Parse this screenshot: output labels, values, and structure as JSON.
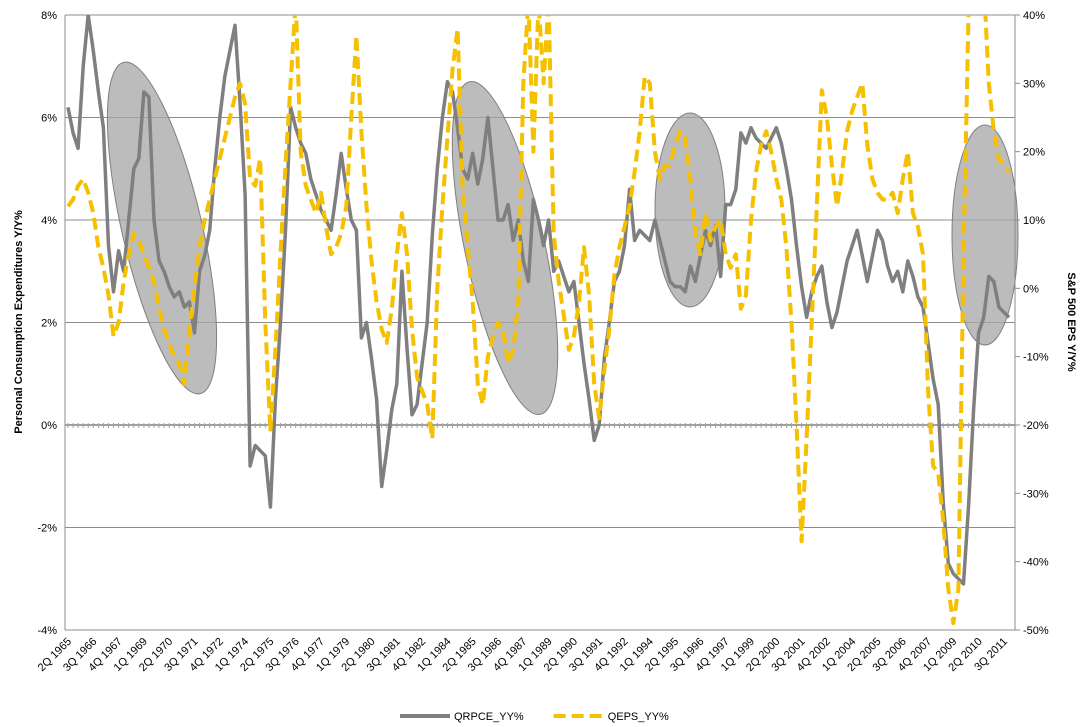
{
  "chart_data": {
    "type": "line",
    "y_label": "Personal Consumption Expenditures Y/Y%",
    "y2_label": "S&P 500 EPS Y/Y%",
    "categories": [
      "2Q 1965",
      null,
      null,
      null,
      null,
      "3Q 1966",
      null,
      null,
      null,
      null,
      "4Q 1967",
      null,
      null,
      null,
      null,
      "1Q 1969",
      null,
      null,
      null,
      null,
      "2Q 1970",
      null,
      null,
      null,
      null,
      "3Q 1971",
      null,
      null,
      null,
      null,
      "4Q 1972",
      null,
      null,
      null,
      null,
      "1Q 1974",
      null,
      null,
      null,
      null,
      "2Q 1975",
      null,
      null,
      null,
      null,
      "3Q 1976",
      null,
      null,
      null,
      null,
      "4Q 1977",
      null,
      null,
      null,
      null,
      "1Q 1979",
      null,
      null,
      null,
      null,
      "2Q 1980",
      null,
      null,
      null,
      null,
      "3Q 1981",
      null,
      null,
      null,
      null,
      "4Q 1982",
      null,
      null,
      null,
      null,
      "1Q 1984",
      null,
      null,
      null,
      null,
      "2Q 1985",
      null,
      null,
      null,
      null,
      "3Q 1986",
      null,
      null,
      null,
      null,
      "4Q 1987",
      null,
      null,
      null,
      null,
      "1Q 1989",
      null,
      null,
      null,
      null,
      "2Q 1990",
      null,
      null,
      null,
      null,
      "3Q 1991",
      null,
      null,
      null,
      null,
      "4Q 1992",
      null,
      null,
      null,
      null,
      "1Q 1994",
      null,
      null,
      null,
      null,
      "2Q 1995",
      null,
      null,
      null,
      null,
      "3Q 1996",
      null,
      null,
      null,
      null,
      "4Q 1997",
      null,
      null,
      null,
      null,
      "1Q 1999",
      null,
      null,
      null,
      null,
      "2Q 2000",
      null,
      null,
      null,
      null,
      "3Q 2001",
      null,
      null,
      null,
      null,
      "4Q 2002",
      null,
      null,
      null,
      null,
      "1Q 2004",
      null,
      null,
      null,
      null,
      "2Q 2005",
      null,
      null,
      null,
      null,
      "3Q 2006",
      null,
      null,
      null,
      null,
      "4Q 2007",
      null,
      null,
      null,
      null,
      "1Q 2009",
      null,
      null,
      null,
      null,
      "2Q 2010",
      null,
      null,
      null,
      null,
      "3Q 2011",
      null
    ],
    "series": [
      {
        "name": "QRPCE_YY%",
        "color": "#7f7f7f",
        "dash": false,
        "axis": "y",
        "values": [
          6.2,
          5.7,
          5.4,
          7.0,
          8.0,
          7.3,
          6.5,
          5.8,
          3.5,
          2.6,
          3.4,
          3.0,
          4.0,
          5.0,
          5.2,
          6.5,
          6.4,
          4.0,
          3.2,
          3.0,
          2.7,
          2.5,
          2.6,
          2.3,
          2.4,
          1.8,
          3.0,
          3.3,
          3.8,
          5.0,
          6.0,
          6.8,
          7.3,
          7.8,
          6.3,
          4.5,
          -0.8,
          -0.4,
          -0.5,
          -0.6,
          -1.6,
          0.5,
          2.0,
          3.8,
          6.2,
          5.8,
          5.5,
          5.3,
          4.8,
          4.5,
          4.2,
          4.0,
          3.8,
          4.5,
          5.3,
          4.6,
          4.0,
          3.8,
          1.7,
          2.0,
          1.3,
          0.5,
          -1.2,
          -0.5,
          0.3,
          0.8,
          3.0,
          1.5,
          0.2,
          0.4,
          1.2,
          2.0,
          3.7,
          5.0,
          6.0,
          6.7,
          6.5,
          5.8,
          5.0,
          4.8,
          5.3,
          4.7,
          5.2,
          6.0,
          5.0,
          4.0,
          4.0,
          4.3,
          3.6,
          4.0,
          3.2,
          2.8,
          4.4,
          4.0,
          3.5,
          4.0,
          3.0,
          3.2,
          2.9,
          2.6,
          2.8,
          2.0,
          1.2,
          0.5,
          -0.3,
          0.0,
          1.3,
          2.0,
          2.8,
          3.0,
          3.5,
          4.6,
          3.6,
          3.8,
          3.7,
          3.6,
          4.0,
          3.6,
          3.2,
          2.8,
          2.7,
          2.7,
          2.6,
          3.1,
          2.8,
          3.3,
          3.8,
          3.5,
          3.9,
          2.9,
          4.3,
          4.3,
          4.6,
          5.7,
          5.5,
          5.8,
          5.6,
          5.5,
          5.4,
          5.6,
          5.8,
          5.5,
          5.0,
          4.4,
          3.5,
          2.7,
          2.1,
          2.6,
          2.9,
          3.1,
          2.4,
          1.9,
          2.2,
          2.7,
          3.2,
          3.5,
          3.8,
          3.3,
          2.8,
          3.3,
          3.8,
          3.6,
          3.1,
          2.8,
          3.0,
          2.6,
          3.2,
          2.9,
          2.5,
          2.3,
          1.6,
          0.9,
          0.4,
          -1.5,
          -2.7,
          -2.9,
          -3.0,
          -3.1,
          -1.6,
          0.3,
          1.8,
          2.1,
          2.9,
          2.8,
          2.3,
          2.2,
          2.1
        ]
      },
      {
        "name": "QEPS_YY%",
        "color": "#f5c000",
        "dash": true,
        "axis": "y2",
        "values": [
          12,
          13,
          15,
          16,
          14,
          11,
          6,
          3,
          -1,
          -7,
          -5,
          1,
          5,
          8,
          7,
          5,
          3,
          1,
          -3,
          -6,
          -8,
          -10,
          -11,
          -14,
          -6,
          0,
          6,
          10,
          13,
          16,
          19,
          22,
          25,
          28,
          30,
          27,
          16,
          15,
          19,
          -5,
          -21,
          -9,
          5,
          18,
          30,
          42,
          20,
          15,
          13,
          11,
          14,
          9,
          5,
          6,
          8,
          12,
          25,
          37,
          23,
          12,
          4,
          -2,
          -6,
          -8,
          -3,
          5,
          11,
          5,
          -6,
          -13,
          -15,
          -17,
          -22,
          0,
          12,
          22,
          32,
          38,
          15,
          6,
          -2,
          -14,
          -17,
          -10,
          -7,
          -5,
          -6,
          -11,
          -9,
          -2,
          30,
          42,
          20,
          42,
          30,
          42,
          8,
          1,
          -4,
          -9,
          -7,
          -2,
          6,
          -1,
          -14,
          -19,
          -12,
          -6,
          2,
          6,
          9,
          12,
          17,
          23,
          31,
          30,
          20,
          16,
          18,
          18,
          21,
          23,
          22,
          16,
          8,
          5,
          11,
          7,
          9,
          10,
          5,
          3,
          5,
          -3,
          -1,
          10,
          17,
          21,
          23,
          20,
          16,
          13,
          6,
          -5,
          -20,
          -37,
          -22,
          -5,
          12,
          29,
          25,
          18,
          12,
          17,
          23,
          26,
          28,
          30,
          21,
          16,
          14,
          13,
          13,
          14,
          11,
          16,
          20,
          11,
          9,
          5,
          -15,
          -26,
          -27,
          -34,
          -44,
          -49,
          -44,
          5,
          40,
          45,
          42,
          45,
          30,
          23,
          19,
          18,
          17
        ]
      }
    ],
    "ylim": [
      -4,
      8
    ],
    "yticks": [
      {
        "value": -4,
        "label": "-4%"
      },
      {
        "value": -2,
        "label": "-2%"
      },
      {
        "value": 0,
        "label": "0%"
      },
      {
        "value": 2,
        "label": "2%"
      },
      {
        "value": 4,
        "label": "4%"
      },
      {
        "value": 6,
        "label": "6%"
      },
      {
        "value": 8,
        "label": "8%"
      }
    ],
    "y2lim": [
      -50,
      40
    ],
    "y2ticks": [
      {
        "value": -50,
        "label": "-50%"
      },
      {
        "value": -40,
        "label": "-40%"
      },
      {
        "value": -30,
        "label": "-30%"
      },
      {
        "value": -20,
        "label": "-20%"
      },
      {
        "value": -10,
        "label": "-10%"
      },
      {
        "value": 0,
        "label": "0%"
      },
      {
        "value": 10,
        "label": "10%"
      },
      {
        "value": 20,
        "label": "20%"
      },
      {
        "value": 30,
        "label": "30%"
      },
      {
        "value": 40,
        "label": "40%"
      }
    ],
    "grid": true,
    "legend": "bottom"
  }
}
